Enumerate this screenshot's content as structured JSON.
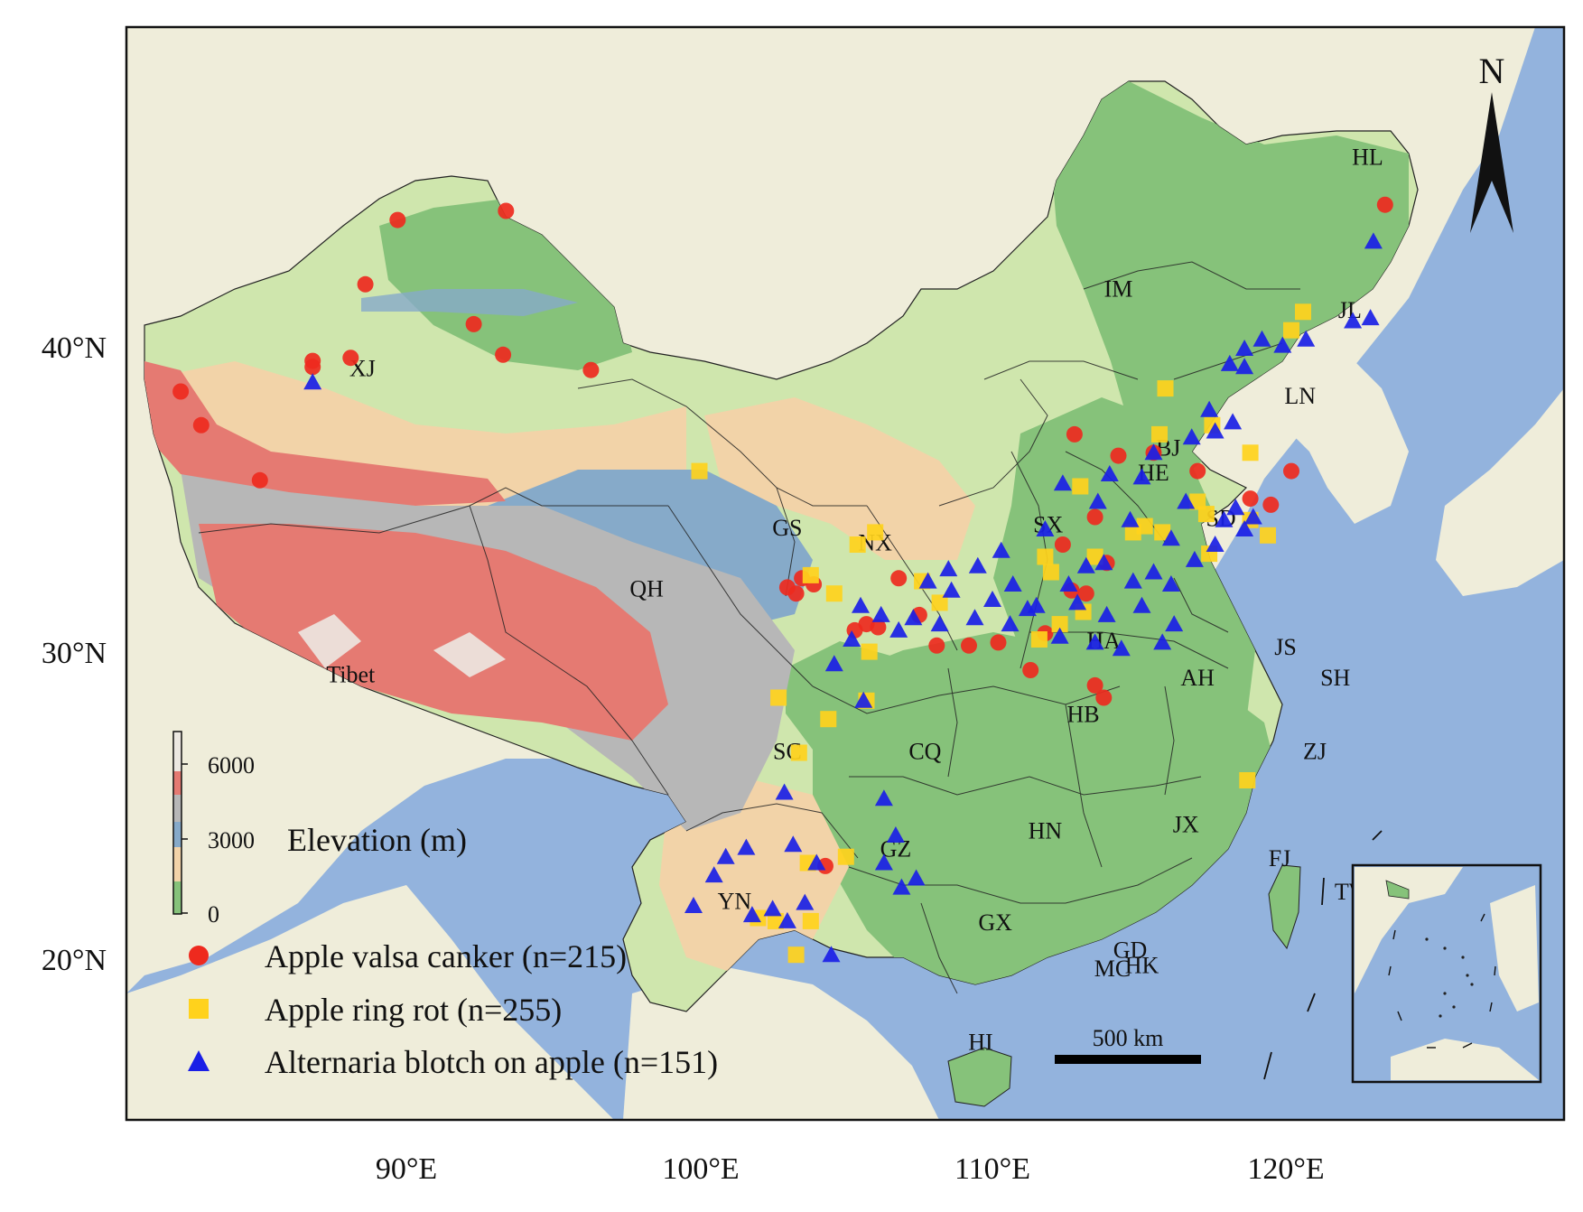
{
  "colors": {
    "sea": "#93b3dd",
    "land_bg": "#efedda",
    "low": "#86c27a",
    "mid_low": "#cfe6ad",
    "mid": "#f2d3a8",
    "upper": "#86aac9",
    "high_grey": "#b7b7b7",
    "high_red": "#e57a72",
    "peak": "#ece8e2",
    "valsa": "#ee2a1e",
    "ringrot": "#ffd21c",
    "alternaria": "#1a1fe6"
  },
  "axes": {
    "x_ticks": [
      "90°E",
      "100°E",
      "110°E",
      "120°E"
    ],
    "y_ticks": [
      "40°N",
      "30°N",
      "20°N"
    ]
  },
  "north_label": "N",
  "scale_bar": {
    "label": "500 km"
  },
  "elevation_legend": {
    "title": "Elevation (m)",
    "ticks": [
      "6000",
      "3000",
      "0"
    ]
  },
  "legend": [
    {
      "label": "Apple valsa canker (n=215)",
      "marker": "circle"
    },
    {
      "label": "Apple ring rot (n=255)",
      "marker": "square"
    },
    {
      "label": "Alternaria blotch on apple (n=151)",
      "marker": "triangle"
    }
  ],
  "provinces": [
    {
      "label": "XJ",
      "lon": 88.5,
      "lat": 39.1
    },
    {
      "label": "Tibet",
      "lon": 88.1,
      "lat": 29.1
    },
    {
      "label": "QH",
      "lon": 98.2,
      "lat": 31.9
    },
    {
      "label": "GS",
      "lon": 103.0,
      "lat": 33.9
    },
    {
      "label": "NX",
      "lon": 106.0,
      "lat": 33.4
    },
    {
      "label": "IM",
      "lon": 114.3,
      "lat": 41.7
    },
    {
      "label": "HL",
      "lon": 122.8,
      "lat": 46.0
    },
    {
      "label": "JL",
      "lon": 122.2,
      "lat": 41.0
    },
    {
      "label": "LN",
      "lon": 120.5,
      "lat": 38.2
    },
    {
      "label": "BJ",
      "lon": 116.0,
      "lat": 36.5
    },
    {
      "label": "HE",
      "lon": 115.5,
      "lat": 35.7
    },
    {
      "label": "SX",
      "lon": 111.9,
      "lat": 34.0
    },
    {
      "label": "SD",
      "lon": 117.8,
      "lat": 34.2
    },
    {
      "label": "HA",
      "lon": 113.8,
      "lat": 30.2
    },
    {
      "label": "JS",
      "lon": 120.0,
      "lat": 30.0
    },
    {
      "label": "SH",
      "lon": 121.7,
      "lat": 29.0
    },
    {
      "label": "AH",
      "lon": 117.0,
      "lat": 29.0
    },
    {
      "label": "HB",
      "lon": 113.1,
      "lat": 27.8
    },
    {
      "label": "SC",
      "lon": 103.0,
      "lat": 26.6
    },
    {
      "label": "CQ",
      "lon": 107.7,
      "lat": 26.6
    },
    {
      "label": "ZJ",
      "lon": 121.0,
      "lat": 26.6
    },
    {
      "label": "HN",
      "lon": 111.8,
      "lat": 24.0
    },
    {
      "label": "JX",
      "lon": 116.6,
      "lat": 24.2
    },
    {
      "label": "FJ",
      "lon": 119.8,
      "lat": 23.1
    },
    {
      "label": "GZ",
      "lon": 106.7,
      "lat": 23.4
    },
    {
      "label": "YN",
      "lon": 101.2,
      "lat": 21.7
    },
    {
      "label": "GX",
      "lon": 110.1,
      "lat": 21.0
    },
    {
      "label": "GD",
      "lon": 114.7,
      "lat": 20.1
    },
    {
      "label": "HK",
      "lon": 115.1,
      "lat": 19.6
    },
    {
      "label": "MC",
      "lon": 114.1,
      "lat": 19.5
    },
    {
      "label": "TW",
      "lon": 122.3,
      "lat": 22.0
    },
    {
      "label": "HI",
      "lon": 109.6,
      "lat": 17.1
    }
  ],
  "points": {
    "valsa": [
      [
        89.7,
        44.2
      ],
      [
        93.4,
        44.5
      ],
      [
        88.6,
        42.1
      ],
      [
        92.3,
        40.8
      ],
      [
        93.3,
        39.8
      ],
      [
        88.1,
        39.7
      ],
      [
        86.8,
        39.6
      ],
      [
        86.8,
        39.4
      ],
      [
        96.3,
        39.3
      ],
      [
        82.3,
        38.6
      ],
      [
        83.0,
        37.5
      ],
      [
        85.0,
        35.7
      ],
      [
        123.4,
        44.7
      ],
      [
        120.2,
        36.0
      ],
      [
        119.5,
        34.9
      ],
      [
        112.8,
        37.2
      ],
      [
        114.3,
        36.5
      ],
      [
        113.5,
        34.5
      ],
      [
        103.5,
        32.5
      ],
      [
        103.9,
        32.3
      ],
      [
        103.3,
        32.0
      ],
      [
        103.0,
        32.2
      ],
      [
        105.7,
        31.0
      ],
      [
        105.3,
        30.8
      ],
      [
        106.1,
        30.9
      ],
      [
        106.8,
        32.5
      ],
      [
        107.5,
        31.3
      ],
      [
        108.1,
        30.3
      ],
      [
        109.2,
        30.3
      ],
      [
        110.2,
        30.4
      ],
      [
        111.3,
        29.5
      ],
      [
        113.5,
        29.0
      ],
      [
        113.8,
        28.6
      ],
      [
        112.7,
        32.1
      ],
      [
        113.2,
        32.0
      ],
      [
        111.8,
        30.7
      ],
      [
        104.3,
        23.1
      ],
      [
        115.5,
        36.6
      ],
      [
        117.0,
        36.0
      ],
      [
        113.9,
        33.0
      ],
      [
        112.4,
        33.6
      ],
      [
        118.8,
        35.1
      ]
    ],
    "ringrot": [
      [
        100.0,
        36.0
      ],
      [
        106.0,
        34.0
      ],
      [
        105.4,
        33.6
      ],
      [
        103.8,
        32.6
      ],
      [
        104.6,
        32.0
      ],
      [
        107.6,
        32.4
      ],
      [
        108.2,
        31.7
      ],
      [
        112.0,
        32.7
      ],
      [
        113.0,
        35.5
      ],
      [
        111.6,
        30.5
      ],
      [
        115.9,
        38.7
      ],
      [
        117.5,
        37.5
      ],
      [
        115.7,
        37.2
      ],
      [
        118.8,
        36.6
      ],
      [
        120.6,
        41.2
      ],
      [
        120.2,
        40.6
      ],
      [
        117.0,
        35.0
      ],
      [
        117.3,
        34.6
      ],
      [
        115.2,
        34.2
      ],
      [
        115.8,
        34.0
      ],
      [
        117.4,
        33.3
      ],
      [
        118.8,
        34.4
      ],
      [
        119.4,
        33.9
      ],
      [
        113.5,
        33.2
      ],
      [
        113.1,
        31.4
      ],
      [
        112.3,
        31.0
      ],
      [
        105.8,
        30.1
      ],
      [
        105.7,
        28.5
      ],
      [
        102.7,
        28.6
      ],
      [
        103.4,
        26.8
      ],
      [
        104.4,
        27.9
      ],
      [
        105.0,
        23.4
      ],
      [
        103.7,
        23.2
      ],
      [
        102.0,
        21.4
      ],
      [
        102.6,
        21.3
      ],
      [
        103.8,
        21.3
      ],
      [
        103.3,
        20.2
      ],
      [
        118.7,
        25.9
      ],
      [
        111.8,
        33.2
      ],
      [
        114.8,
        34.0
      ]
    ],
    "alternaria": [
      [
        86.8,
        38.9
      ],
      [
        123.0,
        43.5
      ],
      [
        122.9,
        41.0
      ],
      [
        122.3,
        40.9
      ],
      [
        119.2,
        40.3
      ],
      [
        119.9,
        40.1
      ],
      [
        120.7,
        40.3
      ],
      [
        118.6,
        40.0
      ],
      [
        118.1,
        39.5
      ],
      [
        118.6,
        39.4
      ],
      [
        117.4,
        38.0
      ],
      [
        118.2,
        37.6
      ],
      [
        117.6,
        37.3
      ],
      [
        116.8,
        37.1
      ],
      [
        115.5,
        36.6
      ],
      [
        114.0,
        35.9
      ],
      [
        115.1,
        35.8
      ],
      [
        116.6,
        35.0
      ],
      [
        118.3,
        34.8
      ],
      [
        118.9,
        34.5
      ],
      [
        117.9,
        34.4
      ],
      [
        118.6,
        34.1
      ],
      [
        117.6,
        33.6
      ],
      [
        116.9,
        33.1
      ],
      [
        115.5,
        32.7
      ],
      [
        116.1,
        32.3
      ],
      [
        115.1,
        31.6
      ],
      [
        114.4,
        30.2
      ],
      [
        113.5,
        30.4
      ],
      [
        112.9,
        31.7
      ],
      [
        112.3,
        30.6
      ],
      [
        111.5,
        31.6
      ],
      [
        110.6,
        31.0
      ],
      [
        110.0,
        31.8
      ],
      [
        109.4,
        31.2
      ],
      [
        108.6,
        32.1
      ],
      [
        108.2,
        31.0
      ],
      [
        107.8,
        32.4
      ],
      [
        107.3,
        31.2
      ],
      [
        106.8,
        30.8
      ],
      [
        106.2,
        31.3
      ],
      [
        105.5,
        31.6
      ],
      [
        105.2,
        30.5
      ],
      [
        104.6,
        29.7
      ],
      [
        105.6,
        28.5
      ],
      [
        102.9,
        25.5
      ],
      [
        103.2,
        23.8
      ],
      [
        101.6,
        23.7
      ],
      [
        100.9,
        23.4
      ],
      [
        100.5,
        22.8
      ],
      [
        101.8,
        21.5
      ],
      [
        102.5,
        21.7
      ],
      [
        103.0,
        21.3
      ],
      [
        103.6,
        21.9
      ],
      [
        104.0,
        23.2
      ],
      [
        104.5,
        20.2
      ],
      [
        99.8,
        21.8
      ],
      [
        106.3,
        25.3
      ],
      [
        106.7,
        24.1
      ],
      [
        106.3,
        23.2
      ],
      [
        106.9,
        22.4
      ],
      [
        107.4,
        22.7
      ],
      [
        110.3,
        33.4
      ],
      [
        111.8,
        34.1
      ],
      [
        112.4,
        35.6
      ],
      [
        113.6,
        35.0
      ],
      [
        114.7,
        34.4
      ],
      [
        116.1,
        33.8
      ],
      [
        113.8,
        33.0
      ],
      [
        114.8,
        32.4
      ],
      [
        112.6,
        32.3
      ],
      [
        109.5,
        32.9
      ],
      [
        108.5,
        32.8
      ],
      [
        110.7,
        32.3
      ],
      [
        111.2,
        31.5
      ],
      [
        113.9,
        31.3
      ],
      [
        115.8,
        30.4
      ],
      [
        116.2,
        31.0
      ],
      [
        113.2,
        32.9
      ]
    ]
  }
}
